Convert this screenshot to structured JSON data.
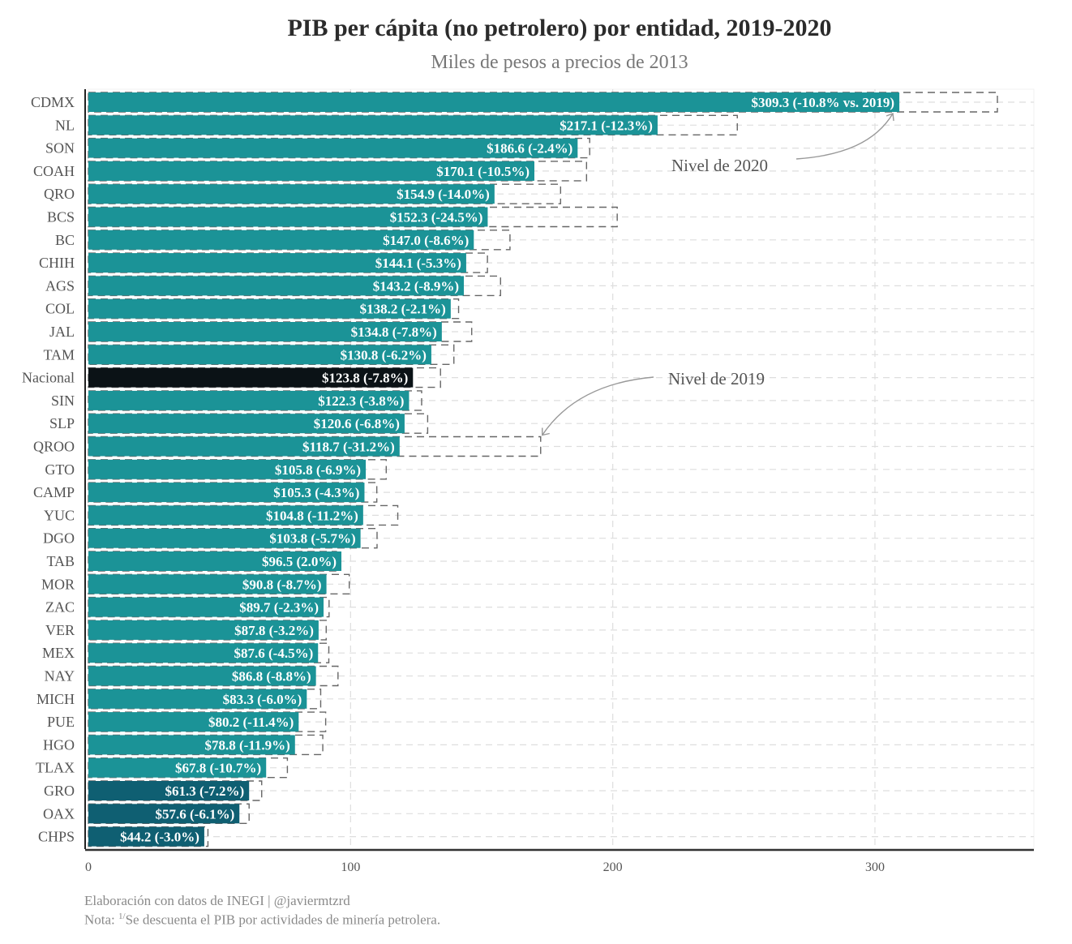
{
  "chart_data": {
    "type": "bar",
    "orientation": "horizontal",
    "title": "PIB per cápita (no petrolero) por entidad, 2019-2020",
    "subtitle": "Miles de pesos a precios de 2013",
    "xlabel": "",
    "ylabel": "",
    "xlim": [
      0,
      360
    ],
    "xticks": [
      0,
      100,
      200,
      300
    ],
    "xtick_labels": [
      "0",
      "100",
      "200",
      "300"
    ],
    "grid": true,
    "legend": "none",
    "categories": [
      "CDMX",
      "NL",
      "SON",
      "COAH",
      "QRO",
      "BCS",
      "BC",
      "CHIH",
      "AGS",
      "COL",
      "JAL",
      "TAM",
      "Nacional",
      "SIN",
      "SLP",
      "QROO",
      "GTO",
      "CAMP",
      "YUC",
      "DGO",
      "TAB",
      "MOR",
      "ZAC",
      "VER",
      "MEX",
      "NAY",
      "MICH",
      "PUE",
      "HGO",
      "TLAX",
      "GRO",
      "OAX",
      "CHPS"
    ],
    "series": [
      {
        "name": "Nivel de 2020",
        "style": "filled",
        "values": [
          309.3,
          217.1,
          186.6,
          170.1,
          154.9,
          152.3,
          147.0,
          144.1,
          143.2,
          138.2,
          134.8,
          130.8,
          123.8,
          122.3,
          120.6,
          118.7,
          105.8,
          105.3,
          104.8,
          103.8,
          96.5,
          90.8,
          89.7,
          87.8,
          87.6,
          86.8,
          83.3,
          80.2,
          78.8,
          67.8,
          61.3,
          57.6,
          44.2
        ]
      },
      {
        "name": "Nivel de 2019",
        "style": "dashed-outline",
        "values": [
          346.7,
          247.5,
          191.2,
          190.0,
          180.1,
          201.7,
          160.8,
          152.2,
          157.2,
          141.2,
          146.2,
          139.4,
          134.3,
          127.1,
          129.4,
          172.5,
          113.6,
          110.0,
          118.0,
          110.1,
          94.6,
          99.5,
          91.8,
          90.7,
          91.7,
          95.2,
          88.6,
          90.5,
          89.4,
          75.9,
          66.1,
          61.3,
          45.6
        ]
      }
    ],
    "pct_change": [
      -10.8,
      -12.3,
      -2.4,
      -10.5,
      -14.0,
      -24.5,
      -8.6,
      -5.3,
      -8.9,
      -2.1,
      -7.8,
      -6.2,
      -7.8,
      -3.8,
      -6.8,
      -31.2,
      -6.9,
      -4.3,
      -11.2,
      -5.7,
      2.0,
      -8.7,
      -2.3,
      -3.2,
      -4.5,
      -8.8,
      -6.0,
      -11.4,
      -11.9,
      -10.7,
      -7.2,
      -6.1,
      -3.0
    ],
    "data_labels": [
      "$309.3 (-10.8% vs. 2019)",
      "$217.1 (-12.3%)",
      "$186.6 (-2.4%)",
      "$170.1 (-10.5%)",
      "$154.9 (-14.0%)",
      "$152.3 (-24.5%)",
      "$147.0 (-8.6%)",
      "$144.1 (-5.3%)",
      "$143.2 (-8.9%)",
      "$138.2 (-2.1%)",
      "$134.8 (-7.8%)",
      "$130.8 (-6.2%)",
      "$123.8 (-7.8%)",
      "$122.3 (-3.8%)",
      "$120.6 (-6.8%)",
      "$118.7 (-31.2%)",
      "$105.8 (-6.9%)",
      "$105.3 (-4.3%)",
      "$104.8 (-11.2%)",
      "$103.8 (-5.7%)",
      "$96.5 (2.0%)",
      "$90.8 (-8.7%)",
      "$89.7 (-2.3%)",
      "$87.8 (-3.2%)",
      "$87.6 (-4.5%)",
      "$86.8 (-8.8%)",
      "$83.3 (-6.0%)",
      "$80.2 (-11.4%)",
      "$78.8 (-11.9%)",
      "$67.8 (-10.7%)",
      "$61.3 (-7.2%)",
      "$57.6 (-6.1%)",
      "$44.2 (-3.0%)"
    ],
    "highlight": {
      "Nacional": "national"
    },
    "annotations": [
      {
        "text": "Nivel de 2020",
        "points_to": "CDMX 2020 bar end"
      },
      {
        "text": "Nivel de 2019",
        "points_to": "QROO 2019 outline end"
      }
    ],
    "colors": {
      "bar_default": "#1b9397",
      "bar_national": "#0b1216",
      "bar_dark": "#0f5f72",
      "outline_2019": "#666666",
      "grid": "#dedede",
      "label_text": "#ffffff",
      "axis_text": "#555555",
      "annotation": "#999999"
    },
    "dark_categories": [
      "GRO",
      "OAX",
      "CHPS"
    ]
  },
  "caption": {
    "source": "Elaboración con datos de INEGI | @javiermtzrd",
    "note_prefix": "Nota: ",
    "note_sup": "1/",
    "note_text": "Se descuenta el PIB por actividades de minería petrolera."
  }
}
